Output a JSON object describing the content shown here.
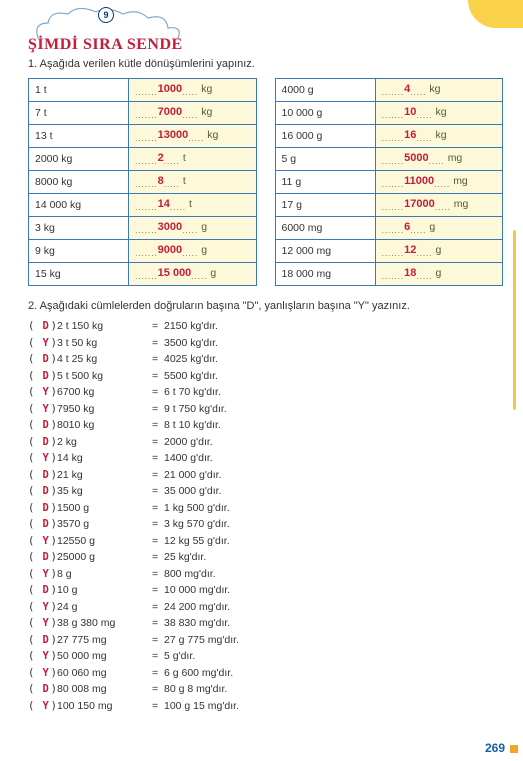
{
  "badge": "9",
  "title": "ŞİMDİ SIRA SENDE",
  "q1": "1. Aşağıda verilen kütle dönüşümlerini yapınız.",
  "q2": "2. Aşağıdaki cümlelerden doğruların başına \"D\", yanlışların başına \"Y\" yazınız.",
  "left": [
    {
      "l": "1 t",
      "a": "1000",
      "u": "kg"
    },
    {
      "l": "7 t",
      "a": "7000",
      "u": "kg"
    },
    {
      "l": "13 t",
      "a": "13000",
      "u": "kg"
    },
    {
      "l": "2000 kg",
      "a": "2",
      "u": "t"
    },
    {
      "l": "8000 kg",
      "a": "8",
      "u": "t"
    },
    {
      "l": "14 000 kg",
      "a": "14",
      "u": "t"
    },
    {
      "l": "3 kg",
      "a": "3000",
      "u": "g"
    },
    {
      "l": "9 kg",
      "a": "9000",
      "u": "g"
    },
    {
      "l": "15 kg",
      "a": "15 000",
      "u": "g"
    }
  ],
  "right": [
    {
      "l": "4000 g",
      "a": "4",
      "u": "kg"
    },
    {
      "l": "10 000 g",
      "a": "10",
      "u": "kg"
    },
    {
      "l": "16 000 g",
      "a": "16",
      "u": "kg"
    },
    {
      "l": "5 g",
      "a": "5000",
      "u": "mg"
    },
    {
      "l": "11 g",
      "a": "11000",
      "u": "mg"
    },
    {
      "l": "17 g",
      "a": "17000",
      "u": "mg"
    },
    {
      "l": "6000 mg",
      "a": "6",
      "u": "g"
    },
    {
      "l": "12 000 mg",
      "a": "12",
      "u": "g"
    },
    {
      "l": "18 000 mg",
      "a": "18",
      "u": "g"
    }
  ],
  "rows": [
    {
      "m": "D",
      "l": "2 t 150 kg",
      "r": "2150 kg'dır."
    },
    {
      "m": "Y",
      "l": "3 t 50 kg",
      "r": "3500 kg'dır."
    },
    {
      "m": "D",
      "l": "4 t 25 kg",
      "r": "4025 kg'dır."
    },
    {
      "m": "D",
      "l": "5 t 500 kg",
      "r": "5500 kg'dır."
    },
    {
      "m": "Y",
      "l": "6700 kg",
      "r": "6 t 70 kg'dır."
    },
    {
      "m": "Y",
      "l": "7950 kg",
      "r": "9 t 750 kg'dır."
    },
    {
      "m": "D",
      "l": "8010 kg",
      "r": "8 t 10 kg'dır."
    },
    {
      "m": "D",
      "l": "2 kg",
      "r": "2000 g'dır."
    },
    {
      "m": "Y",
      "l": "14 kg",
      "r": "1400 g'dır."
    },
    {
      "m": "D",
      "l": "21 kg",
      "r": "21 000 g'dır."
    },
    {
      "m": "D",
      "l": "35 kg",
      "r": "35 000 g'dır."
    },
    {
      "m": "D",
      "l": "1500 g",
      "r": "1 kg 500 g'dır."
    },
    {
      "m": "D",
      "l": "3570 g",
      "r": "3 kg 570 g'dır."
    },
    {
      "m": "Y",
      "l": "12550 g",
      "r": "12 kg 55 g'dır."
    },
    {
      "m": "D",
      "l": "25000 g",
      "r": "25 kg'dır."
    },
    {
      "m": "Y",
      "l": "8 g",
      "r": "800 mg'dır."
    },
    {
      "m": "D",
      "l": "10 g",
      "r": "10 000 mg'dır."
    },
    {
      "m": "Y",
      "l": "24 g",
      "r": "24 200 mg'dır."
    },
    {
      "m": "Y",
      "l": "38 g 380 mg",
      "r": "38 830 mg'dır."
    },
    {
      "m": "D",
      "l": "27 775 mg",
      "r": "27 g 775 mg'dır."
    },
    {
      "m": "Y",
      "l": "50 000 mg",
      "r": "5 g'dır."
    },
    {
      "m": "Y",
      "l": "60 060 mg",
      "r": "6 g 600 mg'dır."
    },
    {
      "m": "D",
      "l": "80 008 mg",
      "r": "80 g 8 mg'dır."
    },
    {
      "m": "Y",
      "l": "100 150 mg",
      "r": "100 g 15 mg'dır."
    }
  ],
  "page": "269"
}
